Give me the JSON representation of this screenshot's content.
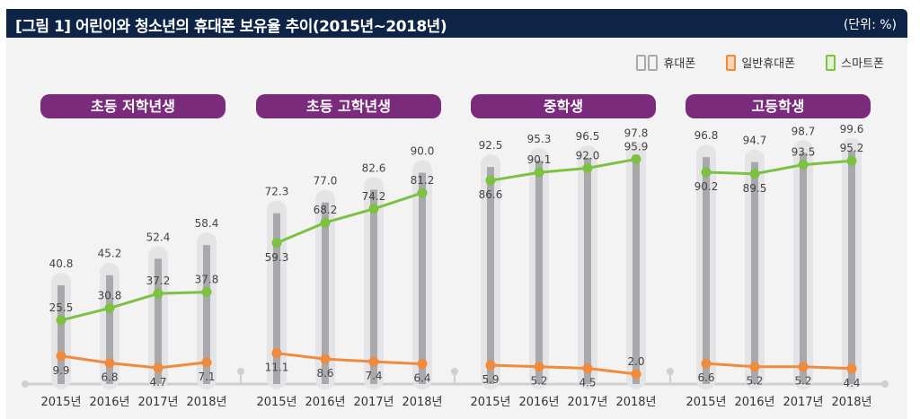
{
  "header": {
    "title": "[그림 1]  어린이와 청소년의 휴대폰 보유율 추이(2015년~2018년)",
    "unit": "(단위: %)"
  },
  "legend": [
    {
      "label": "휴대폰",
      "icon": "double-phone-icon",
      "color": "#a8a8ad"
    },
    {
      "label": "일반휴대폰",
      "icon": "feature-phone-icon",
      "color": "#f08a3c"
    },
    {
      "label": "스마트폰",
      "icon": "smartphone-icon",
      "color": "#7dc142"
    }
  ],
  "chart_data": {
    "type": "bar",
    "title": "어린이와 청소년의 휴대폰 보유율 추이(2015년~2018년)",
    "unit": "%",
    "categories": [
      "2015년",
      "2016년",
      "2017년",
      "2018년"
    ],
    "ylim": [
      0,
      100
    ],
    "grid": false,
    "legend_position": "top-right",
    "groups": [
      {
        "name": "초등 저학년생",
        "series": [
          {
            "name": "휴대폰",
            "type": "bar",
            "values": [
              40.8,
              45.2,
              52.4,
              58.4
            ]
          },
          {
            "name": "스마트폰",
            "type": "line",
            "values": [
              25.5,
              30.8,
              37.2,
              37.8
            ]
          },
          {
            "name": "일반휴대폰",
            "type": "line",
            "values": [
              9.9,
              6.8,
              4.7,
              7.1
            ]
          }
        ]
      },
      {
        "name": "초등 고학년생",
        "series": [
          {
            "name": "휴대폰",
            "type": "bar",
            "values": [
              72.3,
              77.0,
              82.6,
              90.0
            ]
          },
          {
            "name": "스마트폰",
            "type": "line",
            "values": [
              59.3,
              68.2,
              74.2,
              81.2
            ]
          },
          {
            "name": "일반휴대폰",
            "type": "line",
            "values": [
              11.1,
              8.6,
              7.4,
              6.4
            ]
          }
        ]
      },
      {
        "name": "중학생",
        "series": [
          {
            "name": "휴대폰",
            "type": "bar",
            "values": [
              92.5,
              95.3,
              96.5,
              97.8
            ]
          },
          {
            "name": "스마트폰",
            "type": "line",
            "values": [
              86.6,
              90.1,
              92.0,
              95.9
            ]
          },
          {
            "name": "일반휴대폰",
            "type": "line",
            "values": [
              5.9,
              5.2,
              4.5,
              2.0
            ]
          }
        ]
      },
      {
        "name": "고등학생",
        "series": [
          {
            "name": "휴대폰",
            "type": "bar",
            "values": [
              96.8,
              94.7,
              98.7,
              99.6
            ]
          },
          {
            "name": "스마트폰",
            "type": "line",
            "values": [
              90.2,
              89.5,
              93.5,
              95.2
            ]
          },
          {
            "name": "일반휴대폰",
            "type": "line",
            "values": [
              6.6,
              5.2,
              5.2,
              4.4
            ]
          }
        ]
      }
    ]
  },
  "colors": {
    "bar": "#a8a8ad",
    "bar_halo": "#e4e4e6",
    "smartphone": "#7dc142",
    "feature_phone": "#f08a3c",
    "header_bg": "#0e2447",
    "group_header_bg": "#7a2b7c"
  }
}
